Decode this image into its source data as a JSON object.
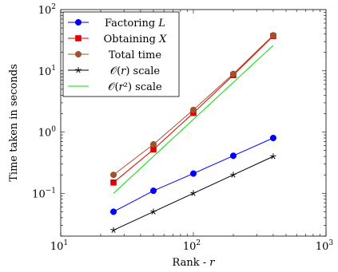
{
  "chart_data": {
    "type": "line",
    "xscale": "log",
    "yscale": "log",
    "xlim": [
      10,
      1000
    ],
    "ylim": [
      0.02,
      100
    ],
    "xlabel_main": "Rank - ",
    "xlabel_var": "r",
    "ylabel": "Time taken in seconds",
    "xticks": [
      {
        "value": 10,
        "base": "10",
        "exp": "1"
      },
      {
        "value": 100,
        "base": "10",
        "exp": "2"
      },
      {
        "value": 1000,
        "base": "10",
        "exp": "3"
      }
    ],
    "yticks": [
      {
        "value": 0.1,
        "base": "10",
        "exp": "−1"
      },
      {
        "value": 1,
        "base": "10",
        "exp": "0"
      },
      {
        "value": 10,
        "base": "10",
        "exp": "1"
      },
      {
        "value": 100,
        "base": "10",
        "exp": "2"
      }
    ],
    "grid": false,
    "legend_position": "top-left",
    "series": [
      {
        "name": "Factoring L",
        "name_main": "Factoring ",
        "name_var": "L",
        "color": "#0000ff",
        "marker": "circle",
        "x": [
          25,
          50,
          100,
          200,
          400
        ],
        "values": [
          0.05,
          0.11,
          0.21,
          0.41,
          0.8
        ]
      },
      {
        "name": "Obtaining X",
        "name_main": "Obtaining ",
        "name_var": "X",
        "color": "#e00000",
        "marker": "square",
        "x": [
          25,
          50,
          100,
          200,
          400
        ],
        "values": [
          0.15,
          0.52,
          2.05,
          8.5,
          37
        ]
      },
      {
        "name": "Total time",
        "name_main": "Total time",
        "name_var": "",
        "color": "#a0522d",
        "marker": "circle",
        "x": [
          25,
          50,
          100,
          200,
          400
        ],
        "values": [
          0.2,
          0.63,
          2.3,
          8.9,
          38
        ]
      },
      {
        "name": "O(r) scale",
        "name_main": "𝒪(𝑟) scale",
        "name_var": "",
        "color": "#000000",
        "marker": "star",
        "x": [
          25,
          50,
          100,
          200,
          400
        ],
        "values": [
          0.025,
          0.05,
          0.1,
          0.2,
          0.4
        ]
      },
      {
        "name": "O(r^2) scale",
        "name_main": "𝒪(𝑟²) scale",
        "name_var": "",
        "color": "#00e000",
        "marker": "none",
        "x": [
          25,
          400
        ],
        "values": [
          0.1,
          26
        ]
      }
    ]
  }
}
